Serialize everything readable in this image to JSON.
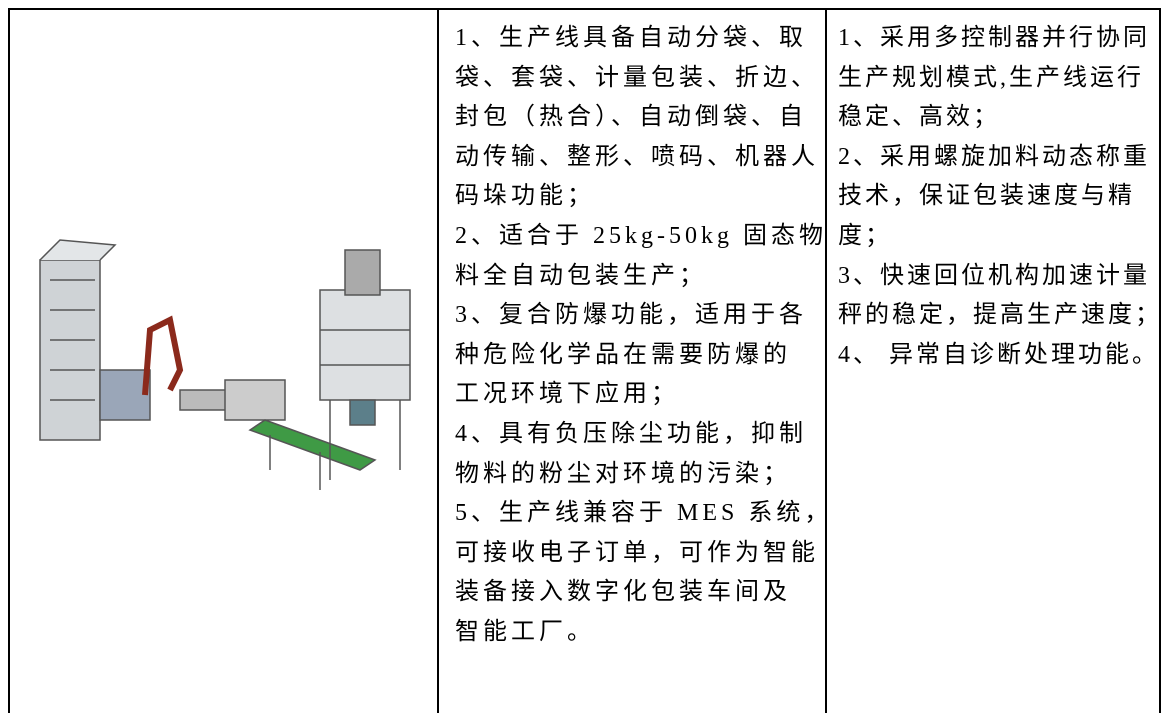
{
  "table": {
    "rows": [
      {
        "cells": [
          {
            "lines": [
              "1、生产线具备自动分袋、取",
              "袋、套袋、计量包装、折边、",
              "封包（热合）、自动倒袋、自",
              "动传输、整形、喷码、机器人",
              "码垛功能；",
              "2、适合于 25kg-50kg 固态物",
              "料全自动包装生产；",
              "3、复合防爆功能，适用于各",
              "种危险化学品在需要防爆的",
              "工况环境下应用；",
              "4、具有负压除尘功能，抑制",
              "物料的粉尘对环境的污染；",
              "5、生产线兼容于 MES 系统，",
              "可接收电子订单，可作为智能",
              "装备接入数字化包装车间及",
              "智能工厂。"
            ]
          },
          {
            "lines": [
              "1、采用多控制器并行协同",
              "生产规划模式,生产线运行",
              "稳定、高效；",
              "2、采用螺旋加料动态称重",
              "技术，保证包装速度与精",
              "度；",
              "3、快速回位机构加速计量",
              "秤的稳定，提高生产速度；",
              "4、 异常自诊断处理功能。"
            ]
          }
        ]
      }
    ]
  }
}
